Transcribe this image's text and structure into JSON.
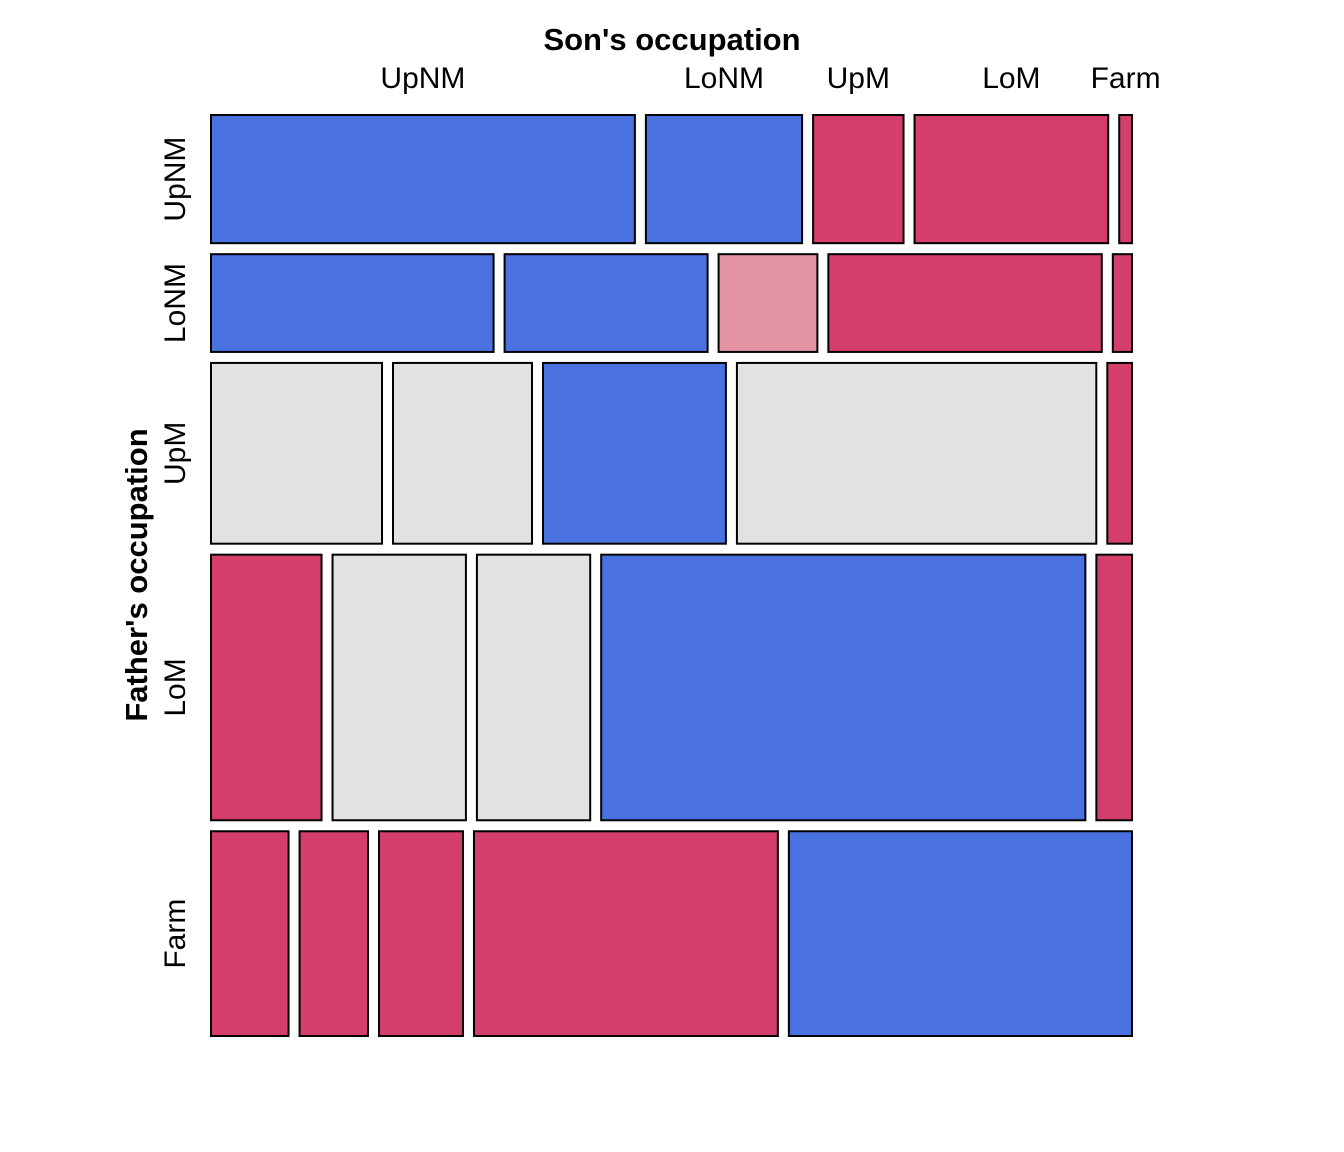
{
  "chart_data": {
    "type": "mosaic",
    "xlabel": "Son's occupation",
    "ylabel": "Father's occupation",
    "son_categories": [
      "UpNM",
      "LoNM",
      "UpM",
      "LoM",
      "Farm"
    ],
    "father_categories": [
      "UpNM",
      "LoNM",
      "UpM",
      "LoM",
      "Farm"
    ],
    "father_proportions": [
      0.139,
      0.106,
      0.196,
      0.288,
      0.222
    ],
    "cells": [
      {
        "father": "UpNM",
        "son_proportions": [
          0.464,
          0.171,
          0.099,
          0.212,
          0.014
        ],
        "shading": [
          "pos",
          "pos",
          "neg",
          "neg",
          "neg"
        ]
      },
      {
        "father": "LoNM",
        "son_proportions": [
          0.309,
          0.222,
          0.108,
          0.299,
          0.021
        ],
        "shading": [
          "pos",
          "pos",
          "neg-light",
          "neg",
          "neg"
        ]
      },
      {
        "father": "UpM",
        "son_proportions": [
          0.187,
          0.152,
          0.2,
          0.393,
          0.027
        ],
        "shading": [
          "neutral",
          "neutral",
          "pos",
          "neutral",
          "neg"
        ]
      },
      {
        "father": "LoM",
        "son_proportions": [
          0.121,
          0.146,
          0.124,
          0.53,
          0.039
        ],
        "shading": [
          "neg",
          "neutral",
          "neutral",
          "pos",
          "neg"
        ]
      },
      {
        "father": "Farm",
        "son_proportions": [
          0.085,
          0.075,
          0.092,
          0.333,
          0.376
        ],
        "shading": [
          "neg",
          "neg",
          "neg",
          "neg",
          "pos"
        ]
      }
    ],
    "colors": {
      "pos": "#4a71e0",
      "neg": "#d33f6a",
      "neg-light": "#e495a5",
      "neutral": "#e2e2e2",
      "border": "#000000"
    },
    "legend": "none"
  }
}
